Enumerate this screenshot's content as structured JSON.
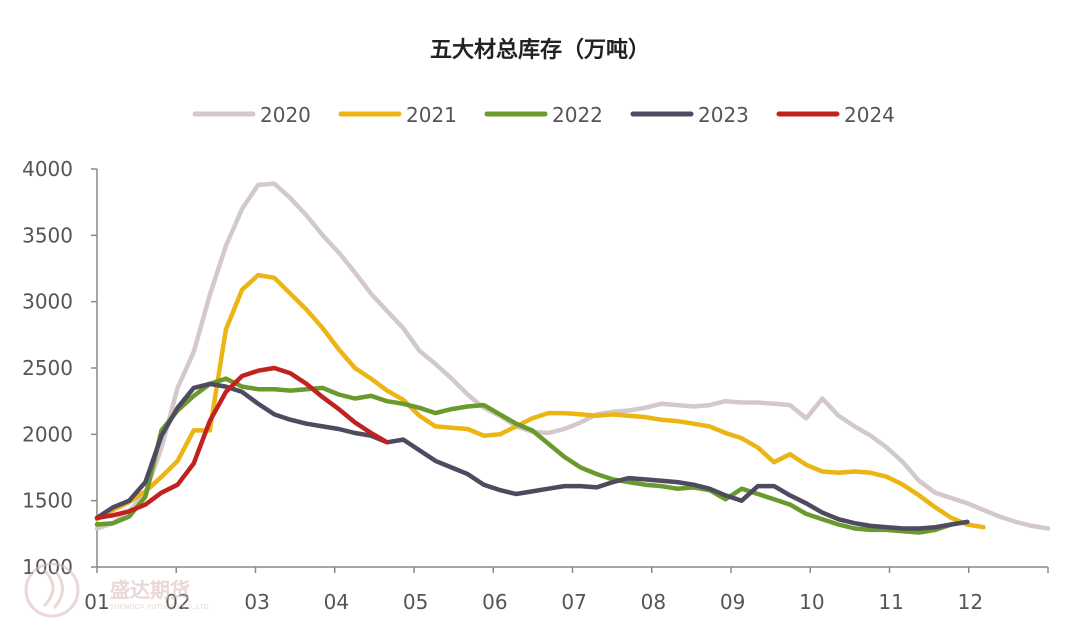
{
  "chart_data": {
    "type": "line",
    "title": "五大材总库存（万吨）",
    "ylim": [
      1000,
      4000
    ],
    "yticks": [
      1000,
      1500,
      2000,
      2500,
      3000,
      3500,
      4000
    ],
    "xticks": [
      "01",
      "02",
      "03",
      "04",
      "05",
      "06",
      "07",
      "08",
      "09",
      "10",
      "11",
      "12"
    ],
    "x_range_weeks": [
      1,
      52
    ],
    "grid": false,
    "legend_position": "top",
    "series": [
      {
        "name": "2020",
        "color": "#d3c8ca",
        "points": [
          [
            1,
            1290
          ],
          [
            2,
            1330
          ],
          [
            3,
            1420
          ],
          [
            4,
            1560
          ],
          [
            5,
            1900
          ],
          [
            6,
            2350
          ],
          [
            7,
            2620
          ],
          [
            8,
            3050
          ],
          [
            9,
            3420
          ],
          [
            10,
            3700
          ],
          [
            11,
            3880
          ],
          [
            12,
            3890
          ],
          [
            13,
            3780
          ],
          [
            14,
            3650
          ],
          [
            15,
            3500
          ],
          [
            16,
            3370
          ],
          [
            17,
            3220
          ],
          [
            18,
            3060
          ],
          [
            19,
            2930
          ],
          [
            20,
            2800
          ],
          [
            21,
            2630
          ],
          [
            22,
            2530
          ],
          [
            23,
            2420
          ],
          [
            24,
            2300
          ],
          [
            25,
            2200
          ],
          [
            26,
            2140
          ],
          [
            27,
            2060
          ],
          [
            28,
            2020
          ],
          [
            29,
            2010
          ],
          [
            30,
            2040
          ],
          [
            31,
            2090
          ],
          [
            32,
            2150
          ],
          [
            33,
            2170
          ],
          [
            34,
            2180
          ],
          [
            35,
            2200
          ],
          [
            36,
            2230
          ],
          [
            37,
            2220
          ],
          [
            38,
            2210
          ],
          [
            39,
            2220
          ],
          [
            40,
            2250
          ],
          [
            41,
            2240
          ],
          [
            42,
            2240
          ],
          [
            43,
            2230
          ],
          [
            44,
            2220
          ],
          [
            45,
            2120
          ],
          [
            46,
            2270
          ],
          [
            47,
            2140
          ],
          [
            48,
            2060
          ],
          [
            49,
            1990
          ],
          [
            50,
            1900
          ],
          [
            51,
            1790
          ],
          [
            52,
            1650
          ],
          [
            53,
            1560
          ],
          [
            54,
            1520
          ],
          [
            55,
            1480
          ],
          [
            56,
            1430
          ],
          [
            57,
            1380
          ],
          [
            58,
            1340
          ],
          [
            59,
            1310
          ],
          [
            60,
            1290
          ]
        ]
      },
      {
        "name": "2021",
        "color": "#ebb513",
        "points": [
          [
            1,
            1360
          ],
          [
            2,
            1430
          ],
          [
            3,
            1490
          ],
          [
            4,
            1570
          ],
          [
            5,
            1680
          ],
          [
            6,
            1800
          ],
          [
            7,
            2030
          ],
          [
            8,
            2030
          ],
          [
            9,
            2790
          ],
          [
            10,
            3090
          ],
          [
            11,
            3200
          ],
          [
            12,
            3180
          ],
          [
            13,
            3060
          ],
          [
            14,
            2940
          ],
          [
            15,
            2800
          ],
          [
            16,
            2640
          ],
          [
            17,
            2500
          ],
          [
            18,
            2420
          ],
          [
            19,
            2330
          ],
          [
            20,
            2260
          ],
          [
            21,
            2140
          ],
          [
            22,
            2060
          ],
          [
            23,
            2050
          ],
          [
            24,
            2040
          ],
          [
            25,
            1990
          ],
          [
            26,
            2000
          ],
          [
            27,
            2060
          ],
          [
            28,
            2120
          ],
          [
            29,
            2160
          ],
          [
            30,
            2160
          ],
          [
            31,
            2150
          ],
          [
            32,
            2140
          ],
          [
            33,
            2150
          ],
          [
            34,
            2140
          ],
          [
            35,
            2130
          ],
          [
            36,
            2110
          ],
          [
            37,
            2100
          ],
          [
            38,
            2080
          ],
          [
            39,
            2060
          ],
          [
            40,
            2010
          ],
          [
            41,
            1970
          ],
          [
            42,
            1900
          ],
          [
            43,
            1790
          ],
          [
            44,
            1850
          ],
          [
            45,
            1770
          ],
          [
            46,
            1720
          ],
          [
            47,
            1710
          ],
          [
            48,
            1720
          ],
          [
            49,
            1710
          ],
          [
            50,
            1680
          ],
          [
            51,
            1620
          ],
          [
            52,
            1540
          ],
          [
            53,
            1450
          ],
          [
            54,
            1370
          ],
          [
            55,
            1320
          ],
          [
            56,
            1300
          ]
        ]
      },
      {
        "name": "2022",
        "color": "#6a9a2e",
        "points": [
          [
            1,
            1320
          ],
          [
            2,
            1330
          ],
          [
            3,
            1380
          ],
          [
            4,
            1530
          ],
          [
            5,
            2030
          ],
          [
            6,
            2180
          ],
          [
            7,
            2290
          ],
          [
            8,
            2380
          ],
          [
            9,
            2420
          ],
          [
            10,
            2360
          ],
          [
            11,
            2340
          ],
          [
            12,
            2340
          ],
          [
            13,
            2330
          ],
          [
            14,
            2340
          ],
          [
            15,
            2350
          ],
          [
            16,
            2300
          ],
          [
            17,
            2270
          ],
          [
            18,
            2290
          ],
          [
            19,
            2250
          ],
          [
            20,
            2230
          ],
          [
            21,
            2200
          ],
          [
            22,
            2160
          ],
          [
            23,
            2190
          ],
          [
            24,
            2210
          ],
          [
            25,
            2220
          ],
          [
            26,
            2150
          ],
          [
            27,
            2080
          ],
          [
            28,
            2030
          ],
          [
            29,
            1930
          ],
          [
            30,
            1830
          ],
          [
            31,
            1750
          ],
          [
            32,
            1700
          ],
          [
            33,
            1660
          ],
          [
            34,
            1640
          ],
          [
            35,
            1620
          ],
          [
            36,
            1610
          ],
          [
            37,
            1590
          ],
          [
            38,
            1600
          ],
          [
            39,
            1580
          ],
          [
            40,
            1510
          ],
          [
            41,
            1590
          ],
          [
            42,
            1550
          ],
          [
            43,
            1510
          ],
          [
            44,
            1470
          ],
          [
            45,
            1400
          ],
          [
            46,
            1360
          ],
          [
            47,
            1320
          ],
          [
            48,
            1290
          ],
          [
            49,
            1280
          ],
          [
            50,
            1280
          ],
          [
            51,
            1270
          ],
          [
            52,
            1260
          ],
          [
            53,
            1280
          ],
          [
            54,
            1320
          ]
        ]
      },
      {
        "name": "2023",
        "color": "#4e4b61",
        "points": [
          [
            1,
            1370
          ],
          [
            2,
            1450
          ],
          [
            3,
            1500
          ],
          [
            4,
            1640
          ],
          [
            5,
            1990
          ],
          [
            6,
            2200
          ],
          [
            7,
            2350
          ],
          [
            8,
            2380
          ],
          [
            9,
            2360
          ],
          [
            10,
            2320
          ],
          [
            11,
            2230
          ],
          [
            12,
            2150
          ],
          [
            13,
            2110
          ],
          [
            14,
            2080
          ],
          [
            15,
            2060
          ],
          [
            16,
            2040
          ],
          [
            17,
            2010
          ],
          [
            18,
            1990
          ],
          [
            19,
            1940
          ],
          [
            20,
            1960
          ],
          [
            21,
            1880
          ],
          [
            22,
            1800
          ],
          [
            23,
            1750
          ],
          [
            24,
            1700
          ],
          [
            25,
            1620
          ],
          [
            26,
            1580
          ],
          [
            27,
            1550
          ],
          [
            28,
            1570
          ],
          [
            29,
            1590
          ],
          [
            30,
            1610
          ],
          [
            31,
            1610
          ],
          [
            32,
            1600
          ],
          [
            33,
            1640
          ],
          [
            34,
            1670
          ],
          [
            35,
            1660
          ],
          [
            36,
            1650
          ],
          [
            37,
            1640
          ],
          [
            38,
            1620
          ],
          [
            39,
            1590
          ],
          [
            40,
            1540
          ],
          [
            41,
            1500
          ],
          [
            42,
            1610
          ],
          [
            43,
            1610
          ],
          [
            44,
            1540
          ],
          [
            45,
            1480
          ],
          [
            46,
            1410
          ],
          [
            47,
            1360
          ],
          [
            48,
            1330
          ],
          [
            49,
            1310
          ],
          [
            50,
            1300
          ],
          [
            51,
            1290
          ],
          [
            52,
            1290
          ],
          [
            53,
            1300
          ],
          [
            54,
            1320
          ],
          [
            55,
            1340
          ]
        ]
      },
      {
        "name": "2024",
        "color": "#c0221f",
        "points": [
          [
            1,
            1370
          ],
          [
            2,
            1390
          ],
          [
            3,
            1420
          ],
          [
            4,
            1470
          ],
          [
            5,
            1560
          ],
          [
            6,
            1620
          ],
          [
            7,
            1780
          ],
          [
            8,
            2100
          ],
          [
            9,
            2320
          ],
          [
            10,
            2440
          ],
          [
            11,
            2480
          ],
          [
            12,
            2500
          ],
          [
            13,
            2460
          ],
          [
            14,
            2380
          ],
          [
            15,
            2280
          ],
          [
            16,
            2190
          ],
          [
            17,
            2090
          ],
          [
            18,
            2010
          ],
          [
            19,
            1940
          ]
        ]
      }
    ]
  },
  "watermark": {
    "brand": "盛达期货",
    "sub": "SHENGDA FUTURES CO.,LTD."
  }
}
